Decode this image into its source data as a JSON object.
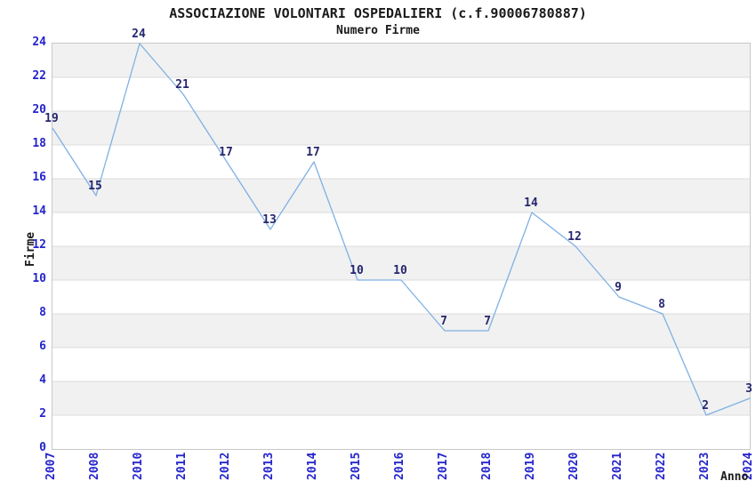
{
  "header": {
    "title": "ASSOCIAZIONE VOLONTARI OSPEDALIERI (c.f.90006780887)",
    "subtitle": "Numero Firme"
  },
  "chart_data": {
    "type": "line",
    "title": "ASSOCIAZIONE VOLONTARI OSPEDALIERI (c.f.90006780887)",
    "subtitle": "Numero Firme",
    "xlabel": "Anno",
    "ylabel": "Firme",
    "categories": [
      "2007",
      "2008",
      "2010",
      "2011",
      "2012",
      "2013",
      "2014",
      "2015",
      "2016",
      "2017",
      "2018",
      "2019",
      "2020",
      "2021",
      "2022",
      "2023",
      "2024"
    ],
    "series": [
      {
        "name": "Numero Firme",
        "values": [
          19,
          15,
          24,
          21,
          17,
          13,
          17,
          10,
          10,
          7,
          7,
          14,
          12,
          9,
          8,
          2,
          3
        ]
      }
    ],
    "point_labels_visible": true,
    "ylim": [
      0,
      24
    ],
    "ytick_step": 2,
    "yticks": [
      0,
      2,
      4,
      6,
      8,
      10,
      12,
      14,
      16,
      18,
      20,
      22,
      24
    ],
    "grid": "horizontal",
    "legend": "none",
    "background_bands": "alternating",
    "colors": {
      "line": "#7fb0e4",
      "point_label": "#26266e",
      "tick_label": "#2424cc",
      "axis_text": "#1a1a1a",
      "band_gray": "#f1f1f1",
      "band_white": "#ffffff",
      "gridline": "#dcdcdc",
      "plot_border": "#c8c8c8",
      "background": "#ffffff"
    }
  }
}
